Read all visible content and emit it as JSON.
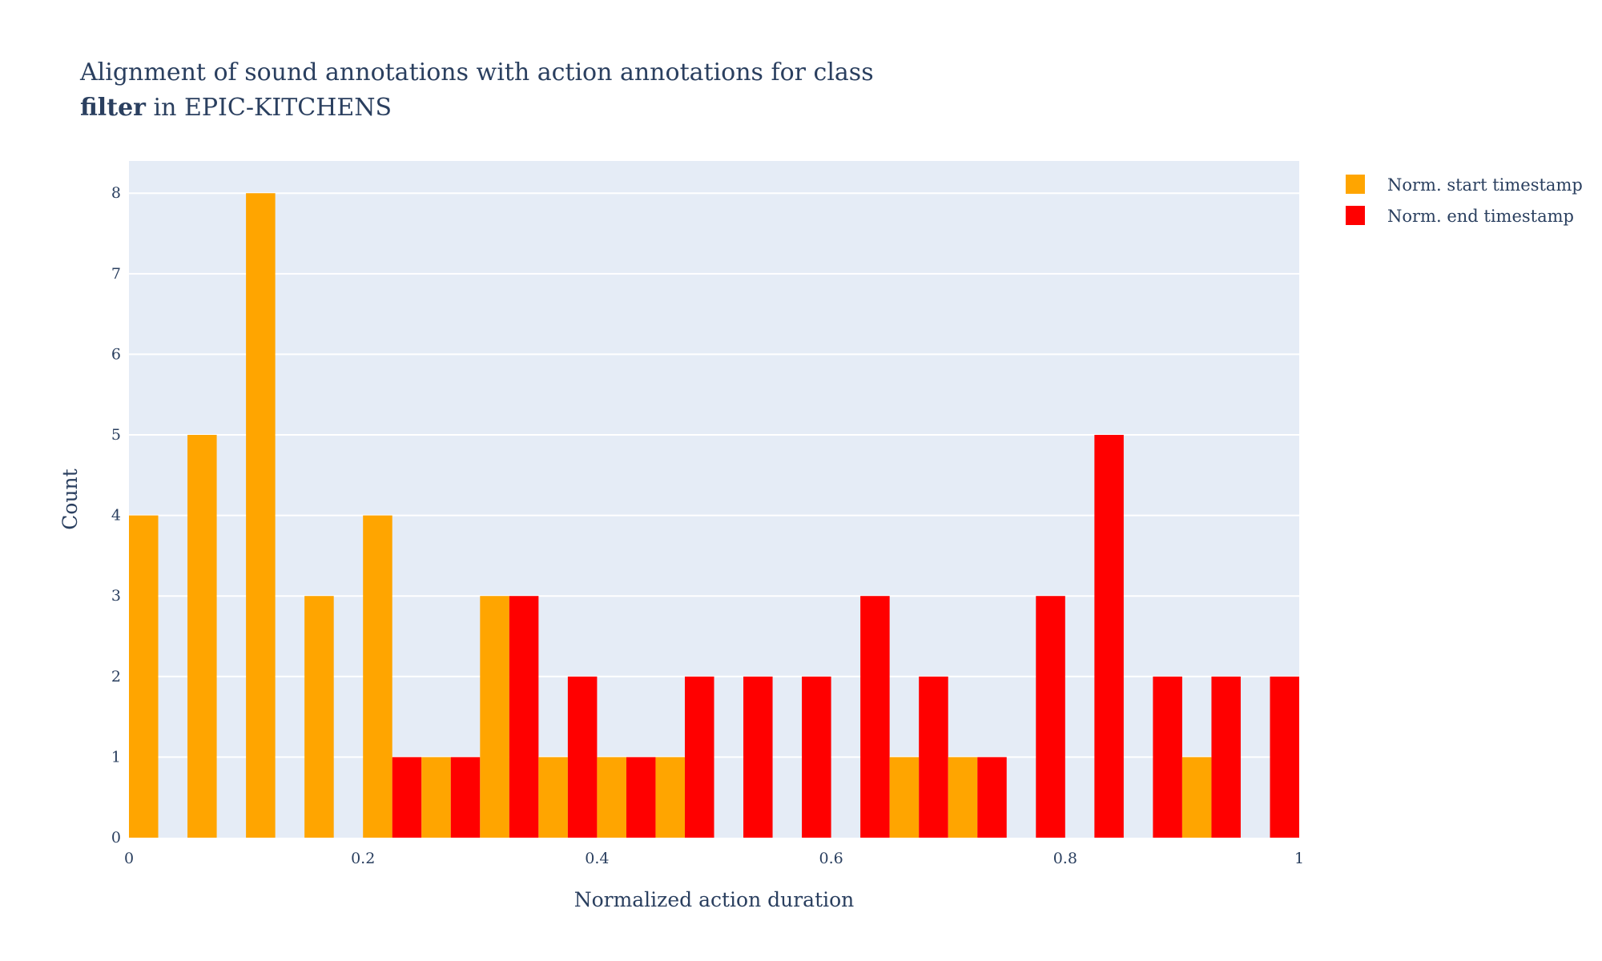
{
  "chart_data": {
    "type": "bar",
    "title_line1": "Alignment of sound annotations with action annotations for class",
    "title_line2_bold": "filter",
    "title_line2_rest": " in EPIC-KITCHENS",
    "xlabel": "Normalized action duration",
    "ylabel": "Count",
    "xlim": [
      0,
      1
    ],
    "ylim": [
      0,
      8.4
    ],
    "bin_width": 0.05,
    "x_ticks": [
      0,
      0.2,
      0.4,
      0.6,
      0.8,
      1
    ],
    "x_tick_labels": [
      "0",
      "0.2",
      "0.4",
      "0.6",
      "0.8",
      "1"
    ],
    "y_ticks": [
      0,
      1,
      2,
      3,
      4,
      5,
      6,
      7,
      8
    ],
    "y_tick_labels": [
      "0",
      "1",
      "2",
      "3",
      "4",
      "5",
      "6",
      "7",
      "8"
    ],
    "grid": true,
    "legend_position": "top-right outside",
    "bin_starts": [
      0,
      0.05,
      0.1,
      0.15,
      0.2,
      0.25,
      0.3,
      0.35,
      0.4,
      0.45,
      0.5,
      0.55,
      0.6,
      0.65,
      0.7,
      0.75,
      0.8,
      0.85,
      0.9,
      0.95
    ],
    "series": [
      {
        "name": "Norm. start timestamp",
        "color": "#FFA500",
        "values": [
          4,
          5,
          8,
          3,
          4,
          1,
          3,
          1,
          1,
          1,
          0,
          0,
          0,
          1,
          1,
          0,
          0,
          0,
          1,
          0
        ]
      },
      {
        "name": "Norm. end timestamp",
        "color": "#FF0000",
        "values": [
          0,
          0,
          0,
          0,
          1,
          1,
          3,
          2,
          1,
          2,
          2,
          2,
          3,
          2,
          1,
          3,
          5,
          2,
          2,
          2
        ]
      }
    ]
  },
  "colors": {
    "plot_background": "#E5ECF6",
    "grid": "#FFFFFF",
    "text": "#2a3f5f"
  }
}
